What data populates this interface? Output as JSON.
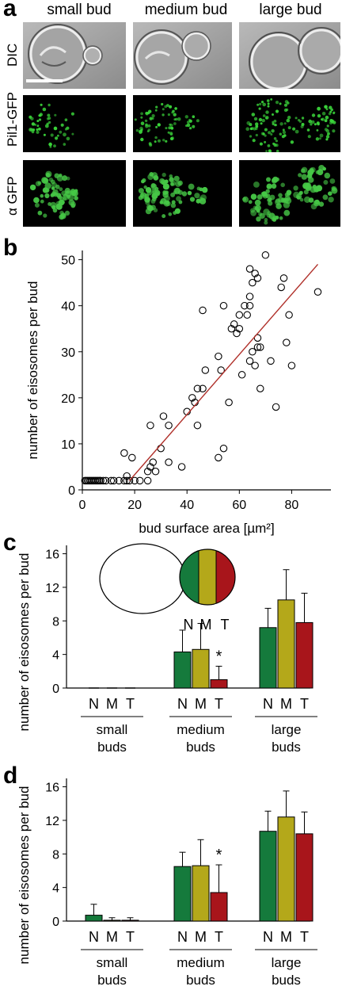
{
  "panel_a": {
    "letter": "a",
    "columns": [
      "small bud",
      "medium bud",
      "large bud"
    ],
    "rows": [
      "DIC",
      "Pil1-GFP",
      "α GFP"
    ]
  },
  "chart_data": [
    {
      "panel": "b",
      "type": "scatter",
      "xlabel": "bud surface area [µm²]",
      "ylabel": "number of eisosomes per bud",
      "xlim": [
        0,
        95
      ],
      "ylim": [
        0,
        52
      ],
      "xticks": [
        0,
        20,
        40,
        60,
        80
      ],
      "yticks": [
        0,
        10,
        20,
        30,
        40,
        50
      ],
      "points": [
        [
          1,
          2
        ],
        [
          1.5,
          2
        ],
        [
          2,
          2
        ],
        [
          2.5,
          2
        ],
        [
          3,
          2
        ],
        [
          3.5,
          2
        ],
        [
          4,
          2
        ],
        [
          4.5,
          2
        ],
        [
          5,
          2
        ],
        [
          5.5,
          2
        ],
        [
          6,
          2
        ],
        [
          6.5,
          2
        ],
        [
          7,
          2
        ],
        [
          8,
          2
        ],
        [
          9,
          2
        ],
        [
          11,
          2
        ],
        [
          12,
          2
        ],
        [
          14,
          2
        ],
        [
          16,
          2
        ],
        [
          17,
          2
        ],
        [
          18,
          2
        ],
        [
          20,
          2
        ],
        [
          22,
          2
        ],
        [
          25,
          2
        ],
        [
          17,
          3
        ],
        [
          16,
          8
        ],
        [
          19,
          7
        ],
        [
          25,
          4
        ],
        [
          26,
          5
        ],
        [
          27,
          6
        ],
        [
          28,
          4
        ],
        [
          26,
          14
        ],
        [
          30,
          9
        ],
        [
          31,
          16
        ],
        [
          33,
          14
        ],
        [
          33,
          6
        ],
        [
          38,
          5
        ],
        [
          40,
          17
        ],
        [
          42,
          20
        ],
        [
          43,
          19
        ],
        [
          44,
          22
        ],
        [
          44,
          14
        ],
        [
          46,
          22
        ],
        [
          46,
          39
        ],
        [
          47,
          26
        ],
        [
          52,
          29
        ],
        [
          52,
          7
        ],
        [
          53,
          26
        ],
        [
          54,
          9
        ],
        [
          54,
          40
        ],
        [
          56,
          19
        ],
        [
          57,
          35
        ],
        [
          58,
          36
        ],
        [
          59,
          34
        ],
        [
          60,
          35
        ],
        [
          60,
          38
        ],
        [
          61,
          25
        ],
        [
          62,
          40
        ],
        [
          63,
          38
        ],
        [
          64,
          40
        ],
        [
          64,
          48
        ],
        [
          64,
          42
        ],
        [
          65,
          45
        ],
        [
          64,
          28
        ],
        [
          65,
          30
        ],
        [
          66,
          27
        ],
        [
          66,
          47
        ],
        [
          67,
          46
        ],
        [
          67,
          31
        ],
        [
          67,
          33
        ],
        [
          68,
          31
        ],
        [
          68,
          22
        ],
        [
          70,
          51
        ],
        [
          72,
          28
        ],
        [
          74,
          18
        ],
        [
          76,
          44
        ],
        [
          77,
          46
        ],
        [
          79,
          38
        ],
        [
          78,
          32
        ],
        [
          80,
          27
        ],
        [
          90,
          43
        ]
      ],
      "fit_line": [
        [
          18,
          2
        ],
        [
          90,
          49
        ]
      ],
      "line_color": "#b0302a"
    },
    {
      "panel": "c",
      "type": "bar",
      "ylabel": "number of eisosomes per bud",
      "ylim": [
        0,
        17
      ],
      "yticks": [
        0,
        4,
        8,
        12,
        16
      ],
      "groups": [
        "small buds",
        "medium buds",
        "large buds"
      ],
      "group_lines": [
        [
          "small",
          "buds"
        ],
        [
          "medium",
          "buds"
        ],
        [
          "large",
          "buds"
        ]
      ],
      "categories": [
        "N",
        "M",
        "T"
      ],
      "series": [
        {
          "name": "N",
          "color": "#157a3c",
          "values": [
            0,
            4.3,
            7.2
          ],
          "errors": [
            0,
            2.6,
            2.3
          ]
        },
        {
          "name": "M",
          "color": "#b4a81a",
          "values": [
            0,
            4.6,
            10.5
          ],
          "errors": [
            0,
            3.1,
            3.6
          ]
        },
        {
          "name": "T",
          "color": "#a8151b",
          "values": [
            0,
            1.0,
            7.8
          ],
          "errors": [
            0,
            1.6,
            3.5
          ]
        }
      ],
      "annotations": [
        {
          "text": "*",
          "group": 1,
          "series": 2
        }
      ],
      "inset": {
        "labels": [
          "N",
          "M",
          "T"
        ]
      }
    },
    {
      "panel": "d",
      "type": "bar",
      "ylabel": "number of eisosomes per bud",
      "ylim": [
        0,
        17
      ],
      "yticks": [
        0,
        4,
        8,
        12,
        16
      ],
      "groups": [
        "small buds",
        "medium buds",
        "large buds"
      ],
      "group_lines": [
        [
          "small",
          "buds"
        ],
        [
          "medium",
          "buds"
        ],
        [
          "large",
          "buds"
        ]
      ],
      "categories": [
        "N",
        "M",
        "T"
      ],
      "series": [
        {
          "name": "N",
          "color": "#157a3c",
          "values": [
            0.7,
            6.5,
            10.7
          ],
          "errors": [
            1.3,
            1.7,
            2.4
          ]
        },
        {
          "name": "M",
          "color": "#b4a81a",
          "values": [
            0.1,
            6.6,
            12.4
          ],
          "errors": [
            0.3,
            3.1,
            3.1
          ]
        },
        {
          "name": "T",
          "color": "#a8151b",
          "values": [
            0.1,
            3.4,
            10.4
          ],
          "errors": [
            0.3,
            3.3,
            2.6
          ]
        }
      ],
      "annotations": [
        {
          "text": "*",
          "group": 1,
          "series": 2
        }
      ]
    }
  ]
}
